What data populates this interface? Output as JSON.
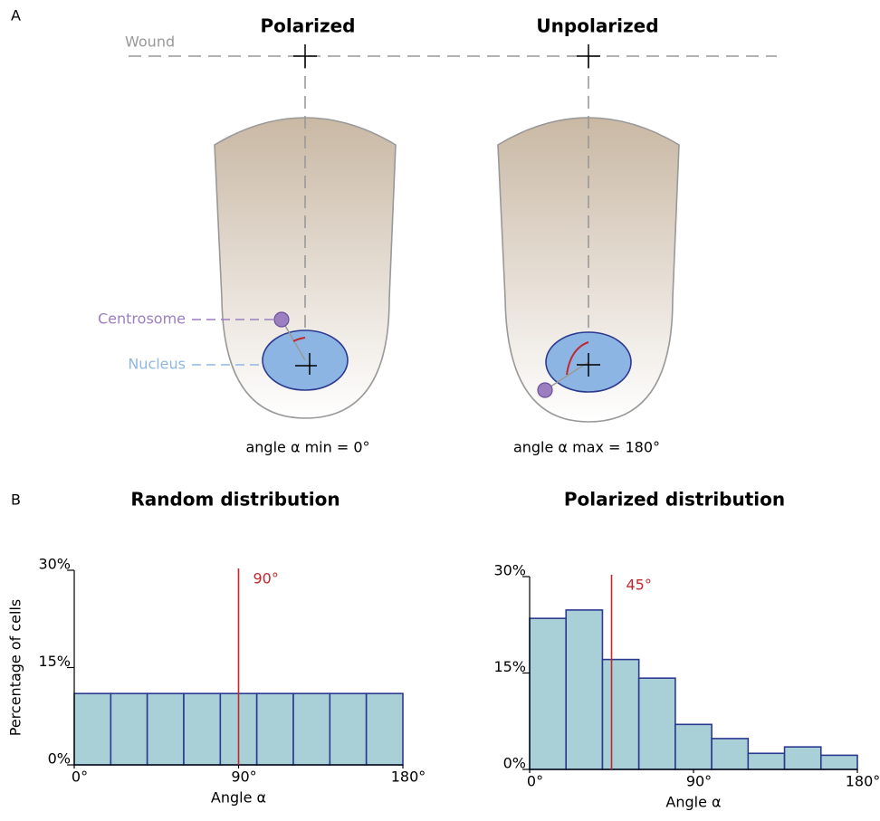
{
  "panel_a": {
    "label": "A",
    "wound": "Wound",
    "centrosome": "Centrosome",
    "nucleus": "Nucleus",
    "cells": [
      {
        "title": "Polarized",
        "caption": "angle α min  = 0°"
      },
      {
        "title": "Unpolarized",
        "caption": "angle α max  = 180°"
      }
    ]
  },
  "panel_b": {
    "label": "B"
  },
  "chart_data": [
    {
      "type": "histogram",
      "title": "Random distribution",
      "x_label": "Angle α",
      "y_label": "Percentage of cells",
      "bins": [
        0,
        20,
        40,
        60,
        80,
        100,
        120,
        140,
        160,
        180
      ],
      "values": [
        11,
        11,
        11,
        11,
        11,
        11,
        11,
        11,
        11
      ],
      "color": "#a9d0d6",
      "edge_color": "#2b3990",
      "xlim": [
        0,
        180
      ],
      "xticks": [
        {
          "value": 0,
          "label": "0°"
        },
        {
          "value": 90,
          "label": "90°"
        },
        {
          "value": 180,
          "label": "180°"
        }
      ],
      "ylim": [
        0,
        30
      ],
      "yticks": [
        {
          "value": 0,
          "label": "0%"
        },
        {
          "value": 15,
          "label": "15%"
        },
        {
          "value": 30,
          "label": "30%"
        }
      ],
      "reference_line": {
        "value": 90,
        "label": "90°",
        "color": "#c1272d"
      }
    },
    {
      "type": "histogram",
      "title": "Polarized distribution",
      "x_label": "Angle α",
      "bins": [
        0,
        20,
        40,
        60,
        80,
        100,
        120,
        140,
        160,
        180
      ],
      "values": [
        23.5,
        24.8,
        17.1,
        14.2,
        7,
        4.8,
        2.5,
        3.5,
        2.2
      ],
      "color": "#a9d0d6",
      "edge_color": "#2b3990",
      "xlim": [
        0,
        180
      ],
      "xticks": [
        {
          "value": 0,
          "label": "0°"
        },
        {
          "value": 90,
          "label": "90°"
        },
        {
          "value": 180,
          "label": "180°"
        }
      ],
      "ylim": [
        0,
        30
      ],
      "yticks": [
        {
          "value": 0,
          "label": "0%"
        },
        {
          "value": 15,
          "label": "15%"
        },
        {
          "value": 30,
          "label": "30%"
        }
      ],
      "reference_line": {
        "value": 45,
        "label": "45°",
        "color": "#c1272d"
      }
    }
  ]
}
